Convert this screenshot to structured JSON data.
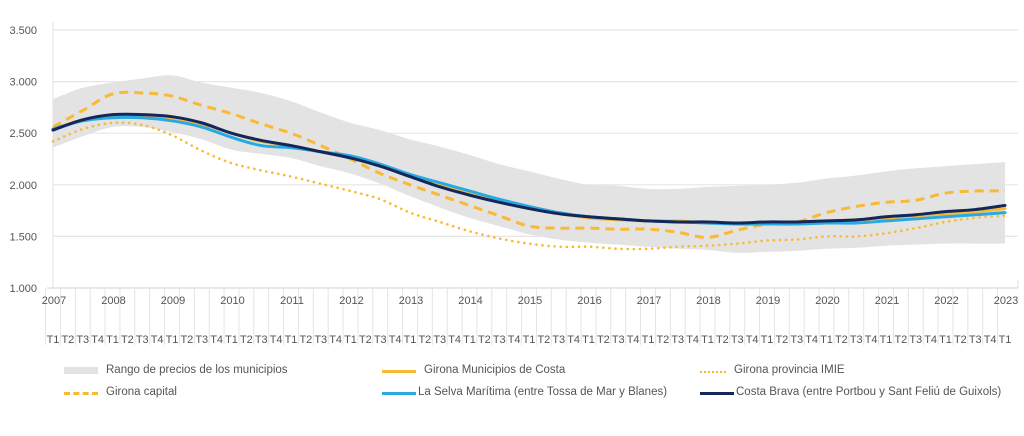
{
  "chart_data": {
    "type": "line",
    "title": "",
    "xlabel": "",
    "ylabel": "",
    "ylim": [
      1000,
      3500
    ],
    "yticks": [
      1000,
      1500,
      2000,
      2500,
      3000,
      3500
    ],
    "ytick_labels": [
      "1.000",
      "1.500",
      "2.000",
      "2.500",
      "3.000",
      "3.500"
    ],
    "grid": true,
    "legend_position": "bottom",
    "year_labels": [
      "2007",
      "2008",
      "2009",
      "2010",
      "2011",
      "2012",
      "2013",
      "2014",
      "2015",
      "2016",
      "2017",
      "2018",
      "2019",
      "2020",
      "2021",
      "2022",
      "2023"
    ],
    "quarter_labels": [
      "T1",
      "T2",
      "T3",
      "T4"
    ],
    "x_note": "Quarterly from 2007 T1 to 2023 T1 (65 quarters); values listed every 2 quarters (T1, T3) and interpolated",
    "x": [
      "2007T1",
      "2007T3",
      "2008T1",
      "2008T3",
      "2009T1",
      "2009T3",
      "2010T1",
      "2010T3",
      "2011T1",
      "2011T3",
      "2012T1",
      "2012T3",
      "2013T1",
      "2013T3",
      "2014T1",
      "2014T3",
      "2015T1",
      "2015T3",
      "2016T1",
      "2016T3",
      "2017T1",
      "2017T3",
      "2018T1",
      "2018T3",
      "2019T1",
      "2019T3",
      "2020T1",
      "2020T3",
      "2021T1",
      "2021T3",
      "2022T1",
      "2022T3",
      "2023T1"
    ],
    "band": {
      "name": "Rango de precios de los municipios",
      "upper": [
        2830,
        2940,
        2990,
        3030,
        3060,
        2990,
        2940,
        2890,
        2810,
        2700,
        2600,
        2530,
        2440,
        2370,
        2290,
        2200,
        2130,
        2060,
        2000,
        1990,
        1960,
        1960,
        1980,
        1990,
        2000,
        2020,
        2060,
        2090,
        2130,
        2160,
        2180,
        2200,
        2220
      ],
      "lower": [
        2360,
        2470,
        2560,
        2560,
        2510,
        2440,
        2340,
        2300,
        2260,
        2180,
        2110,
        2010,
        1890,
        1780,
        1680,
        1600,
        1520,
        1470,
        1440,
        1420,
        1400,
        1380,
        1370,
        1340,
        1350,
        1360,
        1380,
        1390,
        1410,
        1420,
        1430,
        1430,
        1430
      ]
    },
    "series": [
      {
        "name": "Girona Municipios de Costa",
        "style": "solid",
        "color": "#f9b934",
        "values": [
          2540,
          2630,
          2670,
          2670,
          2650,
          2590,
          2500,
          2420,
          2380,
          2320,
          2270,
          2180,
          2080,
          1990,
          1910,
          1840,
          1770,
          1720,
          1680,
          1660,
          1650,
          1650,
          1630,
          1630,
          1630,
          1640,
          1650,
          1660,
          1680,
          1700,
          1720,
          1740,
          1770
        ]
      },
      {
        "name": "Girona provincia IMIE",
        "style": "dotted",
        "color": "#f9b934",
        "values": [
          2420,
          2540,
          2600,
          2580,
          2480,
          2330,
          2210,
          2140,
          2080,
          2010,
          1940,
          1860,
          1730,
          1640,
          1550,
          1480,
          1430,
          1400,
          1400,
          1380,
          1380,
          1400,
          1410,
          1430,
          1460,
          1470,
          1500,
          1500,
          1530,
          1580,
          1640,
          1680,
          1700
        ]
      },
      {
        "name": "Girona capital",
        "style": "dashed",
        "color": "#f9b934",
        "values": [
          2560,
          2720,
          2880,
          2890,
          2860,
          2770,
          2690,
          2590,
          2500,
          2380,
          2250,
          2110,
          2000,
          1900,
          1800,
          1700,
          1600,
          1580,
          1580,
          1570,
          1570,
          1540,
          1490,
          1560,
          1620,
          1640,
          1730,
          1790,
          1830,
          1850,
          1920,
          1940,
          1940
        ]
      },
      {
        "name": "La Selva Marítima (entre Tossa de Mar y Blanes)",
        "style": "solid",
        "color": "#29a9e1",
        "values": [
          2540,
          2620,
          2650,
          2650,
          2620,
          2560,
          2460,
          2380,
          2360,
          2320,
          2280,
          2200,
          2100,
          2020,
          1940,
          1860,
          1790,
          1730,
          1690,
          1670,
          1650,
          1640,
          1630,
          1620,
          1620,
          1620,
          1630,
          1630,
          1650,
          1670,
          1690,
          1710,
          1730
        ]
      },
      {
        "name": "Costa Brava (entre Portbou y Sant Feliú de Guixols)",
        "style": "solid",
        "color": "#13275a",
        "values": [
          2530,
          2630,
          2680,
          2680,
          2660,
          2600,
          2500,
          2430,
          2380,
          2320,
          2260,
          2180,
          2080,
          1980,
          1900,
          1830,
          1770,
          1720,
          1690,
          1670,
          1650,
          1640,
          1640,
          1630,
          1640,
          1640,
          1650,
          1660,
          1690,
          1710,
          1740,
          1760,
          1800
        ]
      }
    ]
  },
  "legend": {
    "items": [
      {
        "label": "Rango de precios de los municipios"
      },
      {
        "label": "Girona Municipios de Costa"
      },
      {
        "label": "Girona provincia IMIE"
      },
      {
        "label": "Girona capital"
      },
      {
        "label": "La Selva Marítima (entre Tossa de Mar y Blanes)"
      },
      {
        "label": "Costa Brava (entre Portbou y Sant Feliú de Guixols)"
      }
    ]
  }
}
